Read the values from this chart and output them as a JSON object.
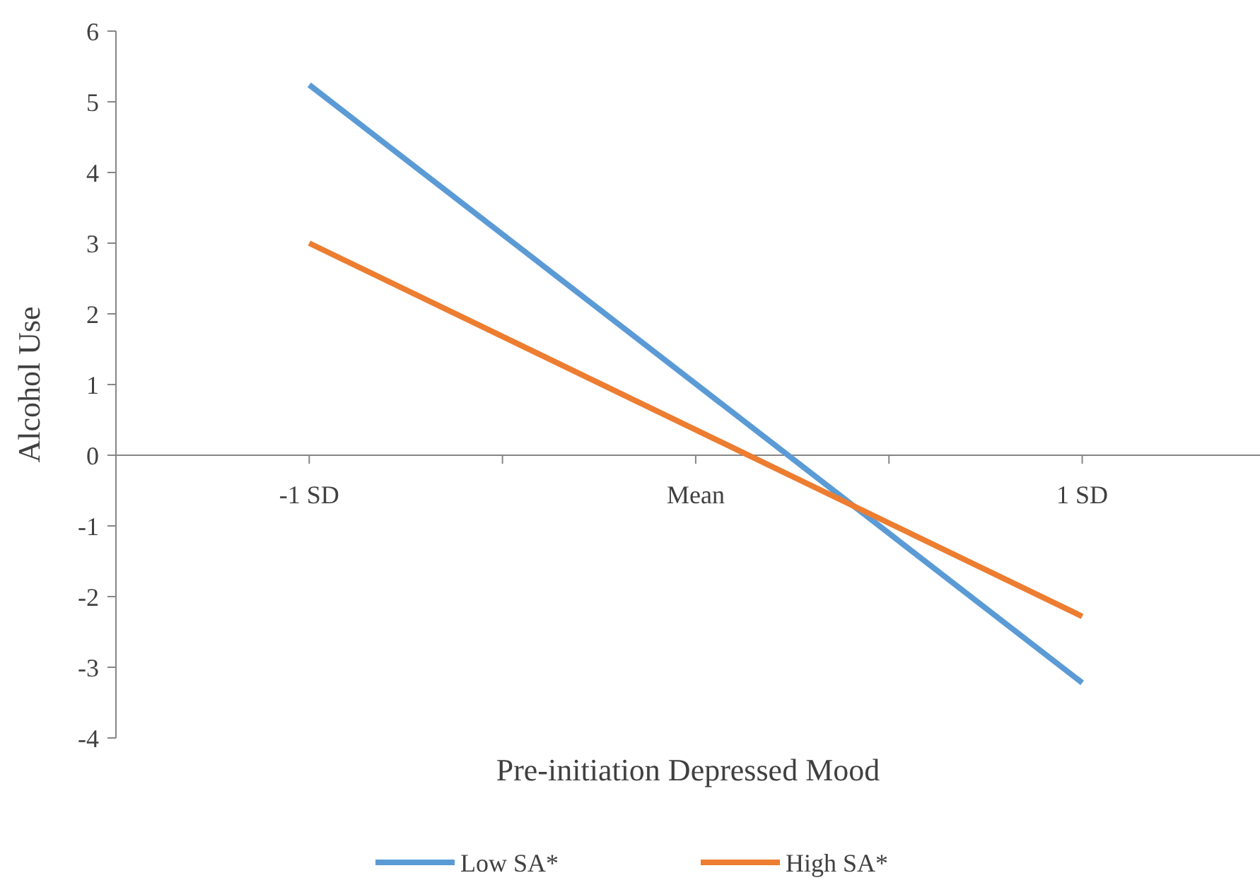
{
  "chart_data": {
    "type": "line",
    "xlabel": "Pre-initiation Depressed Mood",
    "ylabel": "Alcohol Use",
    "x": [
      -1,
      1
    ],
    "xlim": [
      -1.5,
      1.46
    ],
    "xticks": [
      {
        "value": -1.5,
        "label": null
      },
      {
        "value": -1,
        "label": "-1 SD"
      },
      {
        "value": -0.5,
        "label": null
      },
      {
        "value": 0,
        "label": "Mean"
      },
      {
        "value": 0.5,
        "label": null
      },
      {
        "value": 1,
        "label": "1 SD"
      }
    ],
    "ylim": [
      -4,
      6
    ],
    "yticks": [
      -4,
      -3,
      -2,
      -1,
      0,
      1,
      2,
      3,
      4,
      5,
      6
    ],
    "series": [
      {
        "name": "Low SA*",
        "color": "#5b9bd5",
        "values": [
          5.24,
          -3.22
        ]
      },
      {
        "name": "High SA*",
        "color": "#ed7d31",
        "values": [
          3.0,
          -2.28
        ]
      }
    ],
    "legend": "bottom",
    "grid": false,
    "marker": "none",
    "line_style": "solid"
  }
}
